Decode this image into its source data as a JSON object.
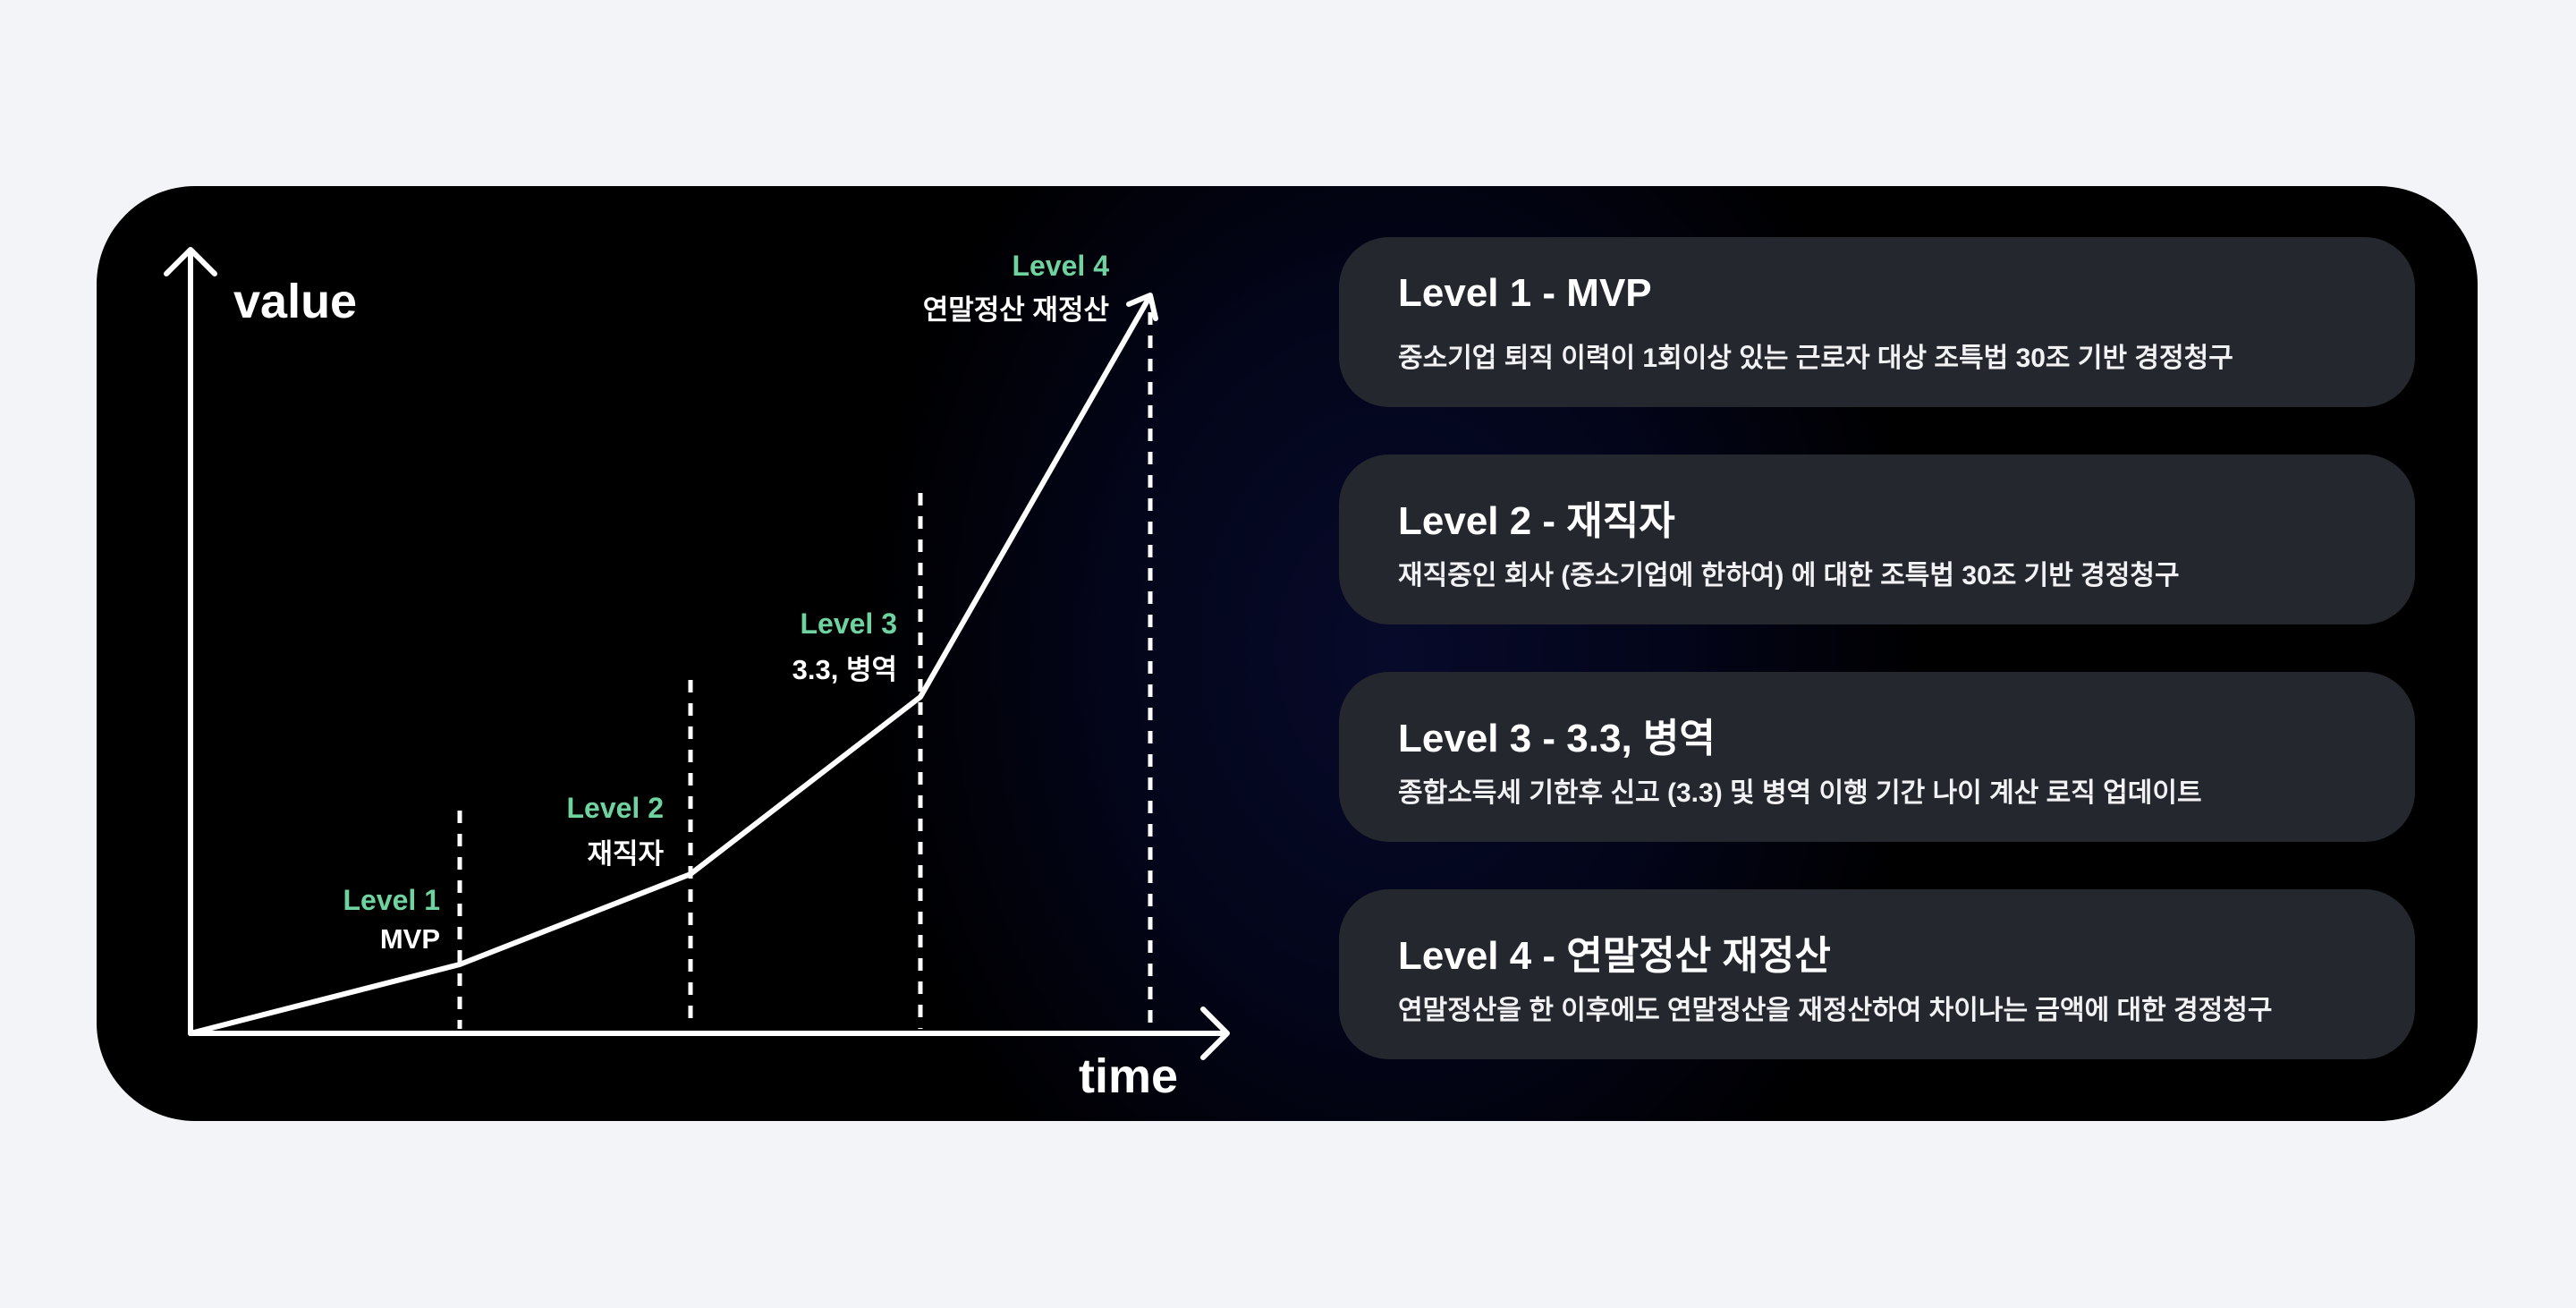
{
  "chart": {
    "y_axis_label": "value",
    "x_axis_label": "time",
    "line_color": "#ffffff",
    "level_color": "#6fd3a0",
    "markers": [
      {
        "level": "Level 1",
        "name": "MVP"
      },
      {
        "level": "Level 2",
        "name": "재직자"
      },
      {
        "level": "Level 3",
        "name": "3.3, 병역"
      },
      {
        "level": "Level 4",
        "name": "연말정산 재정산"
      }
    ]
  },
  "cards": [
    {
      "title": "Level 1 - MVP",
      "desc": "중소기업 퇴직 이력이 1회이상 있는 근로자 대상 조특법 30조 기반 경정청구"
    },
    {
      "title": "Level 2 - 재직자",
      "desc": "재직중인 회사 (중소기업에 한하여) 에 대한 조특법 30조 기반 경정청구"
    },
    {
      "title": "Level 3 - 3.3, 병역",
      "desc": "종합소득세 기한후 신고 (3.3) 및 병역 이행 기간 나이 계산 로직 업데이트"
    },
    {
      "title": "Level 4 - 연말정산 재정산",
      "desc": "연말정산을 한 이후에도 연말정산을 재정산하여 차이나는 금액에 대한 경정청구"
    }
  ],
  "colors": {
    "page_bg": "#f3f4f8",
    "panel_bg": "#000000",
    "card_bg": "#25272e"
  }
}
